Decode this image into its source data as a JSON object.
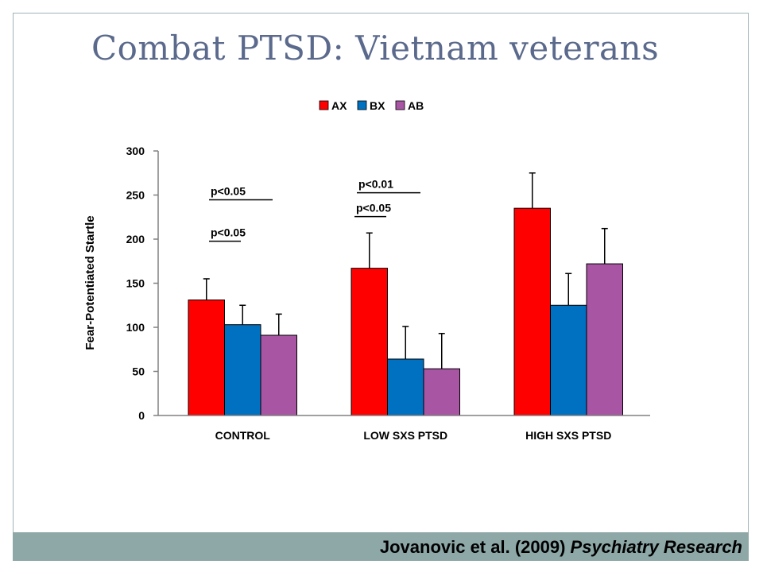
{
  "slide": {
    "title": "Combat PTSD: Vietnam veterans",
    "citation_authors": "Jovanovic et al. (2009) ",
    "citation_journal": "Psychiatry Research"
  },
  "chart_data": {
    "type": "bar",
    "title": "",
    "xlabel": "",
    "ylabel": "Fear-Potentiated Startle",
    "ylim": [
      0,
      300
    ],
    "yticks": [
      0,
      50,
      100,
      150,
      200,
      250,
      300
    ],
    "grid": false,
    "legend_position": "top-center",
    "categories": [
      "CONTROL",
      "LOW SXS PTSD",
      "HIGH SXS PTSD"
    ],
    "series": [
      {
        "name": "AX",
        "color": "#ff0000",
        "values": [
          131,
          167,
          235
        ],
        "errors": [
          24,
          40,
          40
        ]
      },
      {
        "name": "BX",
        "color": "#0070c0",
        "values": [
          103,
          64,
          125
        ],
        "errors": [
          22,
          37,
          36
        ]
      },
      {
        "name": "AB",
        "color": "#a855a3",
        "values": [
          91,
          53,
          172
        ],
        "errors": [
          24,
          40,
          40
        ]
      }
    ],
    "annotations": [
      {
        "text": "p<0.05",
        "category": 0,
        "value": 250,
        "underline": "long"
      },
      {
        "text": "p<0.05",
        "category": 0,
        "value": 203,
        "underline": "short"
      },
      {
        "text": "p<0.01",
        "category": 1,
        "value": 258,
        "underline": "long"
      },
      {
        "text": "p<0.05",
        "category": 1,
        "value": 231,
        "underline": "short"
      }
    ]
  }
}
